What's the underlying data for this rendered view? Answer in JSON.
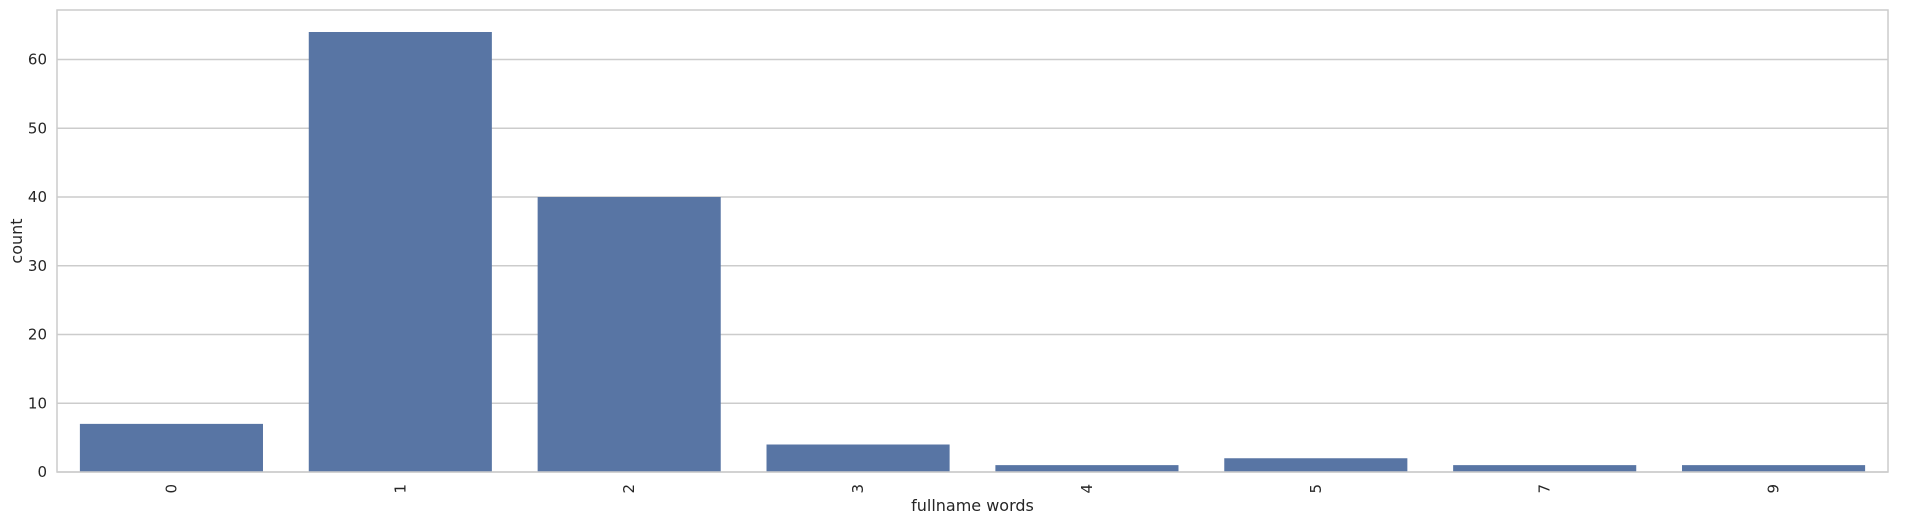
{
  "chart_data": {
    "type": "bar",
    "title": "",
    "xlabel": "fullname words",
    "ylabel": "count",
    "categories": [
      "0",
      "1",
      "2",
      "3",
      "4",
      "5",
      "7",
      "9"
    ],
    "values": [
      7,
      64,
      40,
      4,
      1,
      2,
      1,
      1
    ],
    "ylim": [
      0,
      67.2
    ],
    "yticks": [
      "0",
      "10",
      "20",
      "30",
      "40",
      "50",
      "60"
    ],
    "grid": "horizontal",
    "bar_color": "#5875a4",
    "grid_color": "#cccccc",
    "frame_color": "#cccccc",
    "x_tick_rotation": 90
  }
}
